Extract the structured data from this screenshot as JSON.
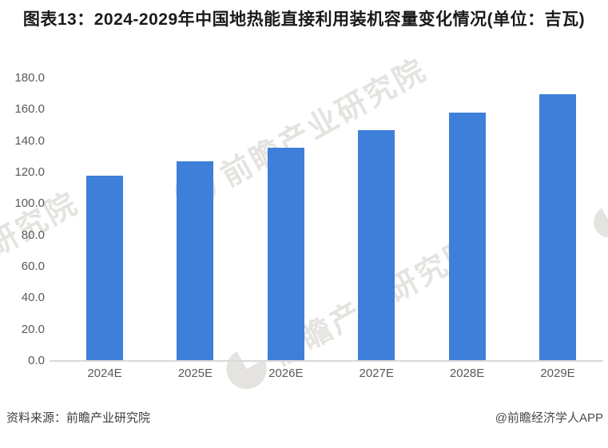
{
  "title": "图表13：2024-2029年中国地热能直接利用装机容量变化情况(单位：吉瓦)",
  "chart_data": {
    "type": "bar",
    "title": "图表13：2024-2029年中国地热能直接利用装机容量变化情况(单位：吉瓦)",
    "categories": [
      "2024E",
      "2025E",
      "2026E",
      "2027E",
      "2028E",
      "2029E"
    ],
    "values": [
      118,
      127,
      136,
      147,
      158,
      170
    ],
    "unit": "吉瓦",
    "xlabel": "",
    "ylabel": "",
    "ylim": [
      0,
      180
    ],
    "ytick_step": 20,
    "yticks": [
      "180.0",
      "160.0",
      "140.0",
      "120.0",
      "100.0",
      "80.0",
      "60.0",
      "40.0",
      "20.0",
      "0.0"
    ],
    "grid": false,
    "legend": false,
    "bar_color": "#3E7FD9"
  },
  "footer": {
    "source": "资料来源：前瞻产业研究院",
    "credit": "@前瞻经济学人APP"
  },
  "watermark": {
    "text": "前瞻产业研究院",
    "color": "#b3aca4"
  }
}
